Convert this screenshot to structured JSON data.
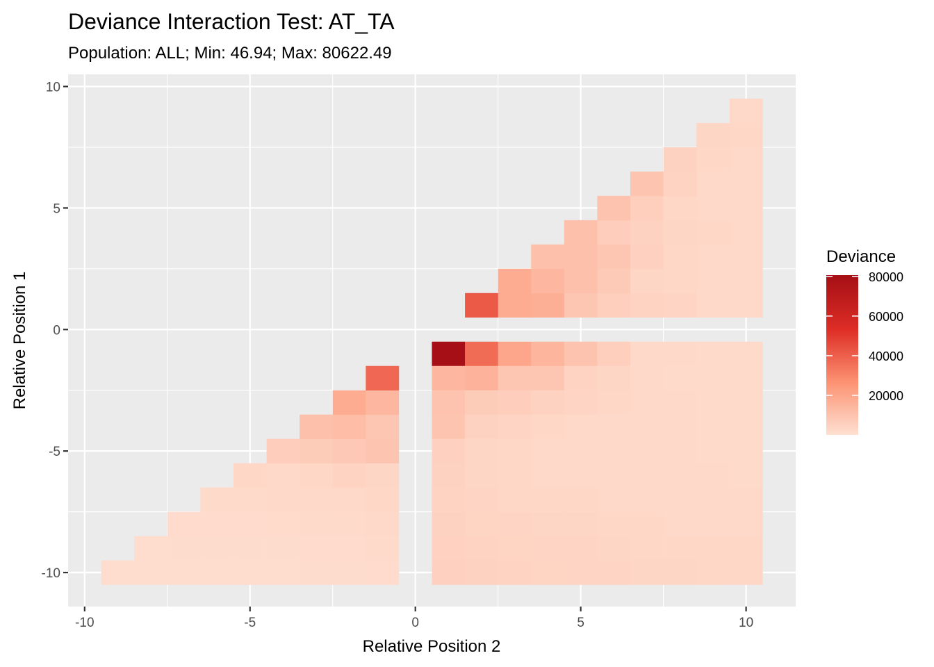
{
  "chart_data": {
    "type": "heatmap",
    "title": "Deviance Interaction Test: AT_TA",
    "subtitle": "Population: ALL; Min: 46.94; Max: 80622.49",
    "xlabel": "Relative Position 2",
    "ylabel": "Relative Position 1",
    "xlim": [
      -10.5,
      11.5
    ],
    "ylim": [
      -11.4,
      10.5
    ],
    "x_ticks": [
      -10,
      -5,
      0,
      5,
      10
    ],
    "x_tick_labels": [
      "-10",
      "-5",
      "0",
      "5",
      "10"
    ],
    "y_ticks": [
      -10,
      -5,
      0,
      5,
      10
    ],
    "y_tick_labels": [
      "-10",
      "-5",
      "0",
      "5",
      "10"
    ],
    "grid": true,
    "legend": {
      "title": "Deviance",
      "placement": "right",
      "min": 46.94,
      "max": 80622.49,
      "breaks": [
        20000,
        40000,
        60000,
        80000
      ],
      "break_labels": [
        "20000",
        "40000",
        "60000",
        "80000"
      ],
      "colors": [
        "#fee0d2",
        "#fc9272",
        "#de2d26",
        "#a50f15"
      ]
    },
    "cells": [
      {
        "x": -9,
        "y": -10,
        "value": 1200
      },
      {
        "x": -8,
        "y": -10,
        "value": 1100
      },
      {
        "x": -7,
        "y": -10,
        "value": 1200
      },
      {
        "x": -6,
        "y": -10,
        "value": 1300
      },
      {
        "x": -5,
        "y": -10,
        "value": 1300
      },
      {
        "x": -4,
        "y": -10,
        "value": 1300
      },
      {
        "x": -3,
        "y": -10,
        "value": 1400
      },
      {
        "x": -2,
        "y": -10,
        "value": 1500
      },
      {
        "x": -1,
        "y": -10,
        "value": 1600
      },
      {
        "x": -8,
        "y": -9,
        "value": 1300
      },
      {
        "x": -7,
        "y": -9,
        "value": 1400
      },
      {
        "x": -6,
        "y": -9,
        "value": 1400
      },
      {
        "x": -5,
        "y": -9,
        "value": 1500
      },
      {
        "x": -4,
        "y": -9,
        "value": 1500
      },
      {
        "x": -3,
        "y": -9,
        "value": 1600
      },
      {
        "x": -2,
        "y": -9,
        "value": 1700
      },
      {
        "x": -1,
        "y": -9,
        "value": 2000
      },
      {
        "x": -7,
        "y": -8,
        "value": 1600
      },
      {
        "x": -6,
        "y": -8,
        "value": 1700
      },
      {
        "x": -5,
        "y": -8,
        "value": 1800
      },
      {
        "x": -4,
        "y": -8,
        "value": 1900
      },
      {
        "x": -3,
        "y": -8,
        "value": 2000
      },
      {
        "x": -2,
        "y": -8,
        "value": 2100
      },
      {
        "x": -1,
        "y": -8,
        "value": 2500
      },
      {
        "x": -6,
        "y": -7,
        "value": 2000
      },
      {
        "x": -5,
        "y": -7,
        "value": 2100
      },
      {
        "x": -4,
        "y": -7,
        "value": 2300
      },
      {
        "x": -3,
        "y": -7,
        "value": 2500
      },
      {
        "x": -2,
        "y": -7,
        "value": 2800
      },
      {
        "x": -1,
        "y": -7,
        "value": 3300
      },
      {
        "x": -5,
        "y": -6,
        "value": 3000
      },
      {
        "x": -4,
        "y": -6,
        "value": 2800
      },
      {
        "x": -3,
        "y": -6,
        "value": 3200
      },
      {
        "x": -2,
        "y": -6,
        "value": 4500
      },
      {
        "x": -1,
        "y": -6,
        "value": 3500
      },
      {
        "x": -4,
        "y": -5,
        "value": 6500
      },
      {
        "x": -3,
        "y": -5,
        "value": 7000
      },
      {
        "x": -2,
        "y": -5,
        "value": 8000
      },
      {
        "x": -1,
        "y": -5,
        "value": 9500
      },
      {
        "x": -3,
        "y": -4,
        "value": 11000
      },
      {
        "x": -2,
        "y": -4,
        "value": 12000
      },
      {
        "x": -1,
        "y": -4,
        "value": 9000
      },
      {
        "x": -2,
        "y": -3,
        "value": 18000
      },
      {
        "x": -1,
        "y": -3,
        "value": 14000
      },
      {
        "x": -1,
        "y": -2,
        "value": 38000
      },
      {
        "x": 1,
        "y": -1,
        "value": 80622
      },
      {
        "x": 2,
        "y": -1,
        "value": 37000
      },
      {
        "x": 3,
        "y": -1,
        "value": 20000
      },
      {
        "x": 4,
        "y": -1,
        "value": 15000
      },
      {
        "x": 5,
        "y": -1,
        "value": 10000
      },
      {
        "x": 6,
        "y": -1,
        "value": 6000
      },
      {
        "x": 7,
        "y": -1,
        "value": 2500
      },
      {
        "x": 8,
        "y": -1,
        "value": 2300
      },
      {
        "x": 9,
        "y": -1,
        "value": 2200
      },
      {
        "x": 10,
        "y": -1,
        "value": 2100
      },
      {
        "x": 1,
        "y": -2,
        "value": 14000
      },
      {
        "x": 2,
        "y": -2,
        "value": 15500
      },
      {
        "x": 3,
        "y": -2,
        "value": 9000
      },
      {
        "x": 4,
        "y": -2,
        "value": 9000
      },
      {
        "x": 5,
        "y": -2,
        "value": 4500
      },
      {
        "x": 6,
        "y": -2,
        "value": 3500
      },
      {
        "x": 7,
        "y": -2,
        "value": 2500
      },
      {
        "x": 8,
        "y": -2,
        "value": 2200
      },
      {
        "x": 9,
        "y": -2,
        "value": 2100
      },
      {
        "x": 10,
        "y": -2,
        "value": 2000
      },
      {
        "x": 1,
        "y": -3,
        "value": 10000
      },
      {
        "x": 2,
        "y": -3,
        "value": 7000
      },
      {
        "x": 3,
        "y": -3,
        "value": 6500
      },
      {
        "x": 4,
        "y": -3,
        "value": 5000
      },
      {
        "x": 5,
        "y": -3,
        "value": 4000
      },
      {
        "x": 6,
        "y": -3,
        "value": 3000
      },
      {
        "x": 7,
        "y": -3,
        "value": 2500
      },
      {
        "x": 8,
        "y": -3,
        "value": 2300
      },
      {
        "x": 9,
        "y": -3,
        "value": 2100
      },
      {
        "x": 10,
        "y": -3,
        "value": 2000
      },
      {
        "x": 1,
        "y": -4,
        "value": 9500
      },
      {
        "x": 2,
        "y": -4,
        "value": 5000
      },
      {
        "x": 3,
        "y": -4,
        "value": 4000
      },
      {
        "x": 4,
        "y": -4,
        "value": 3000
      },
      {
        "x": 5,
        "y": -4,
        "value": 2800
      },
      {
        "x": 6,
        "y": -4,
        "value": 2600
      },
      {
        "x": 7,
        "y": -4,
        "value": 2400
      },
      {
        "x": 8,
        "y": -4,
        "value": 2300
      },
      {
        "x": 9,
        "y": -4,
        "value": 2200
      },
      {
        "x": 10,
        "y": -4,
        "value": 2000
      },
      {
        "x": 1,
        "y": -5,
        "value": 5500
      },
      {
        "x": 2,
        "y": -5,
        "value": 3500
      },
      {
        "x": 3,
        "y": -5,
        "value": 3000
      },
      {
        "x": 4,
        "y": -5,
        "value": 2800
      },
      {
        "x": 5,
        "y": -5,
        "value": 2600
      },
      {
        "x": 6,
        "y": -5,
        "value": 2500
      },
      {
        "x": 7,
        "y": -5,
        "value": 2400
      },
      {
        "x": 8,
        "y": -5,
        "value": 2300
      },
      {
        "x": 9,
        "y": -5,
        "value": 2200
      },
      {
        "x": 10,
        "y": -5,
        "value": 2100
      },
      {
        "x": 1,
        "y": -6,
        "value": 5000
      },
      {
        "x": 2,
        "y": -6,
        "value": 3500
      },
      {
        "x": 3,
        "y": -6,
        "value": 3000
      },
      {
        "x": 4,
        "y": -6,
        "value": 2800
      },
      {
        "x": 5,
        "y": -6,
        "value": 2700
      },
      {
        "x": 6,
        "y": -6,
        "value": 2600
      },
      {
        "x": 7,
        "y": -6,
        "value": 2500
      },
      {
        "x": 8,
        "y": -6,
        "value": 2800
      },
      {
        "x": 9,
        "y": -6,
        "value": 2300
      },
      {
        "x": 10,
        "y": -6,
        "value": 2200
      },
      {
        "x": 1,
        "y": -7,
        "value": 4500
      },
      {
        "x": 2,
        "y": -7,
        "value": 3800
      },
      {
        "x": 3,
        "y": -7,
        "value": 3300
      },
      {
        "x": 4,
        "y": -7,
        "value": 3000
      },
      {
        "x": 5,
        "y": -7,
        "value": 3000
      },
      {
        "x": 6,
        "y": -7,
        "value": 2800
      },
      {
        "x": 7,
        "y": -7,
        "value": 2700
      },
      {
        "x": 8,
        "y": -7,
        "value": 2600
      },
      {
        "x": 9,
        "y": -7,
        "value": 2500
      },
      {
        "x": 10,
        "y": -7,
        "value": 2400
      },
      {
        "x": 1,
        "y": -8,
        "value": 5000
      },
      {
        "x": 2,
        "y": -8,
        "value": 4200
      },
      {
        "x": 3,
        "y": -8,
        "value": 3800
      },
      {
        "x": 4,
        "y": -8,
        "value": 3500
      },
      {
        "x": 5,
        "y": -8,
        "value": 3400
      },
      {
        "x": 6,
        "y": -8,
        "value": 3200
      },
      {
        "x": 7,
        "y": -8,
        "value": 3000
      },
      {
        "x": 8,
        "y": -8,
        "value": 2900
      },
      {
        "x": 9,
        "y": -8,
        "value": 2800
      },
      {
        "x": 10,
        "y": -8,
        "value": 2700
      },
      {
        "x": 1,
        "y": -9,
        "value": 5200
      },
      {
        "x": 2,
        "y": -9,
        "value": 4500
      },
      {
        "x": 3,
        "y": -9,
        "value": 4200
      },
      {
        "x": 4,
        "y": -9,
        "value": 4000
      },
      {
        "x": 5,
        "y": -9,
        "value": 3800
      },
      {
        "x": 6,
        "y": -9,
        "value": 3500
      },
      {
        "x": 7,
        "y": -9,
        "value": 3300
      },
      {
        "x": 8,
        "y": -9,
        "value": 3200
      },
      {
        "x": 9,
        "y": -9,
        "value": 3100
      },
      {
        "x": 10,
        "y": -9,
        "value": 3000
      },
      {
        "x": 1,
        "y": -10,
        "value": 5500
      },
      {
        "x": 2,
        "y": -10,
        "value": 4800
      },
      {
        "x": 3,
        "y": -10,
        "value": 4500
      },
      {
        "x": 4,
        "y": -10,
        "value": 4200
      },
      {
        "x": 5,
        "y": -10,
        "value": 4000
      },
      {
        "x": 6,
        "y": -10,
        "value": 3800
      },
      {
        "x": 7,
        "y": -10,
        "value": 3500
      },
      {
        "x": 8,
        "y": -10,
        "value": 3400
      },
      {
        "x": 9,
        "y": -10,
        "value": 3300
      },
      {
        "x": 10,
        "y": -10,
        "value": 3200
      },
      {
        "x": 2,
        "y": 1,
        "value": 42000
      },
      {
        "x": 3,
        "y": 1,
        "value": 18000
      },
      {
        "x": 4,
        "y": 1,
        "value": 17000
      },
      {
        "x": 5,
        "y": 1,
        "value": 9000
      },
      {
        "x": 6,
        "y": 1,
        "value": 6000
      },
      {
        "x": 7,
        "y": 1,
        "value": 4500
      },
      {
        "x": 8,
        "y": 1,
        "value": 4000
      },
      {
        "x": 9,
        "y": 1,
        "value": 2800
      },
      {
        "x": 10,
        "y": 1,
        "value": 2500
      },
      {
        "x": 3,
        "y": 2,
        "value": 18000
      },
      {
        "x": 4,
        "y": 2,
        "value": 14000
      },
      {
        "x": 5,
        "y": 2,
        "value": 11000
      },
      {
        "x": 6,
        "y": 2,
        "value": 7500
      },
      {
        "x": 7,
        "y": 2,
        "value": 3500
      },
      {
        "x": 8,
        "y": 2,
        "value": 3000
      },
      {
        "x": 9,
        "y": 2,
        "value": 2700
      },
      {
        "x": 10,
        "y": 2,
        "value": 2500
      },
      {
        "x": 4,
        "y": 3,
        "value": 11000
      },
      {
        "x": 5,
        "y": 3,
        "value": 11000
      },
      {
        "x": 6,
        "y": 3,
        "value": 9000
      },
      {
        "x": 7,
        "y": 3,
        "value": 5500
      },
      {
        "x": 8,
        "y": 3,
        "value": 3000
      },
      {
        "x": 9,
        "y": 3,
        "value": 2800
      },
      {
        "x": 10,
        "y": 3,
        "value": 2600
      },
      {
        "x": 5,
        "y": 4,
        "value": 11000
      },
      {
        "x": 6,
        "y": 4,
        "value": 6500
      },
      {
        "x": 7,
        "y": 4,
        "value": 5000
      },
      {
        "x": 8,
        "y": 4,
        "value": 3500
      },
      {
        "x": 9,
        "y": 4,
        "value": 3000
      },
      {
        "x": 10,
        "y": 4,
        "value": 2500
      },
      {
        "x": 6,
        "y": 5,
        "value": 10000
      },
      {
        "x": 7,
        "y": 5,
        "value": 6000
      },
      {
        "x": 8,
        "y": 5,
        "value": 3000
      },
      {
        "x": 9,
        "y": 5,
        "value": 2800
      },
      {
        "x": 10,
        "y": 5,
        "value": 2700
      },
      {
        "x": 7,
        "y": 6,
        "value": 9500
      },
      {
        "x": 8,
        "y": 6,
        "value": 4500
      },
      {
        "x": 9,
        "y": 6,
        "value": 2800
      },
      {
        "x": 10,
        "y": 6,
        "value": 2700
      },
      {
        "x": 8,
        "y": 7,
        "value": 5000
      },
      {
        "x": 9,
        "y": 7,
        "value": 3000
      },
      {
        "x": 10,
        "y": 7,
        "value": 2800
      },
      {
        "x": 9,
        "y": 8,
        "value": 3500
      },
      {
        "x": 10,
        "y": 8,
        "value": 3000
      },
      {
        "x": 10,
        "y": 9,
        "value": 2500
      }
    ]
  }
}
